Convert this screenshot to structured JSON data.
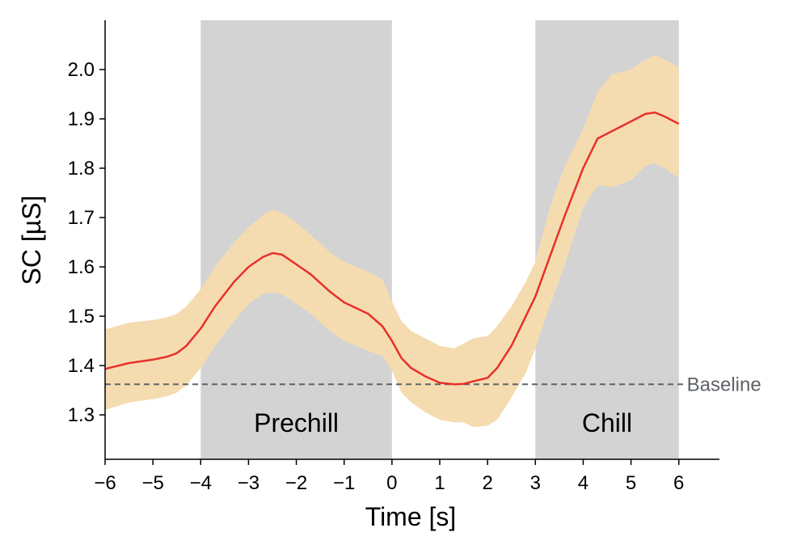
{
  "chart_data": {
    "type": "line",
    "title": "",
    "xlabel": "Time [s]",
    "ylabel": "SC [µS]",
    "xlim": [
      -6,
      6.85
    ],
    "ylim": [
      1.21,
      2.1
    ],
    "xticks": [
      -6,
      -5,
      -4,
      -3,
      -2,
      -1,
      0,
      1,
      2,
      3,
      4,
      5,
      6
    ],
    "xtick_labels": [
      "−6",
      "−5",
      "−4",
      "−3",
      "−2",
      "−1",
      "0",
      "1",
      "2",
      "3",
      "4",
      "5",
      "6"
    ],
    "yticks": [
      1.3,
      1.4,
      1.5,
      1.6,
      1.7,
      1.8,
      1.9,
      2.0
    ],
    "ytick_labels": [
      "1.3",
      "1.4",
      "1.5",
      "1.6",
      "1.7",
      "1.8",
      "1.9",
      "2.0"
    ],
    "grid": false,
    "regions": [
      {
        "label": "Prechill",
        "x_start": -4,
        "x_end": 0,
        "color": "#d3d3d3"
      },
      {
        "label": "Chill",
        "x_start": 3,
        "x_end": 6,
        "color": "#d3d3d3"
      }
    ],
    "baseline": {
      "label": "Baseline",
      "value": 1.362,
      "color": "#5f6368"
    },
    "series": [
      {
        "color": "#e8302a",
        "band_color": "#f5dcb0",
        "x": [
          -6,
          -5.5,
          -5,
          -4.7,
          -4.5,
          -4.3,
          -4,
          -3.7,
          -3.3,
          -3,
          -2.7,
          -2.5,
          -2.3,
          -2,
          -1.7,
          -1.3,
          -1,
          -0.5,
          -0.2,
          0,
          0.2,
          0.4,
          0.7,
          1,
          1.3,
          1.5,
          1.7,
          2,
          2.2,
          2.5,
          2.8,
          3,
          3.3,
          3.6,
          4,
          4.3,
          4.6,
          5,
          5.3,
          5.5,
          5.7,
          6
        ],
        "y": [
          1.393,
          1.405,
          1.412,
          1.418,
          1.425,
          1.44,
          1.475,
          1.52,
          1.57,
          1.6,
          1.62,
          1.628,
          1.625,
          1.605,
          1.585,
          1.55,
          1.528,
          1.505,
          1.48,
          1.45,
          1.415,
          1.395,
          1.378,
          1.365,
          1.362,
          1.363,
          1.368,
          1.375,
          1.395,
          1.44,
          1.5,
          1.54,
          1.62,
          1.7,
          1.8,
          1.86,
          1.875,
          1.895,
          1.91,
          1.913,
          1.905,
          1.89
        ],
        "lower": [
          1.31,
          1.325,
          1.332,
          1.338,
          1.345,
          1.36,
          1.395,
          1.44,
          1.49,
          1.525,
          1.545,
          1.548,
          1.545,
          1.525,
          1.505,
          1.47,
          1.45,
          1.43,
          1.42,
          1.39,
          1.345,
          1.325,
          1.305,
          1.29,
          1.285,
          1.285,
          1.275,
          1.278,
          1.29,
          1.335,
          1.385,
          1.435,
          1.52,
          1.6,
          1.72,
          1.765,
          1.762,
          1.775,
          1.805,
          1.81,
          1.8,
          1.78
        ],
        "upper": [
          1.473,
          1.487,
          1.492,
          1.498,
          1.505,
          1.52,
          1.555,
          1.6,
          1.65,
          1.68,
          1.705,
          1.715,
          1.71,
          1.69,
          1.665,
          1.63,
          1.61,
          1.59,
          1.575,
          1.53,
          1.49,
          1.47,
          1.455,
          1.44,
          1.435,
          1.445,
          1.455,
          1.46,
          1.48,
          1.52,
          1.57,
          1.61,
          1.72,
          1.8,
          1.88,
          1.955,
          1.99,
          2.0,
          2.02,
          2.03,
          2.02,
          2.005
        ]
      }
    ]
  }
}
